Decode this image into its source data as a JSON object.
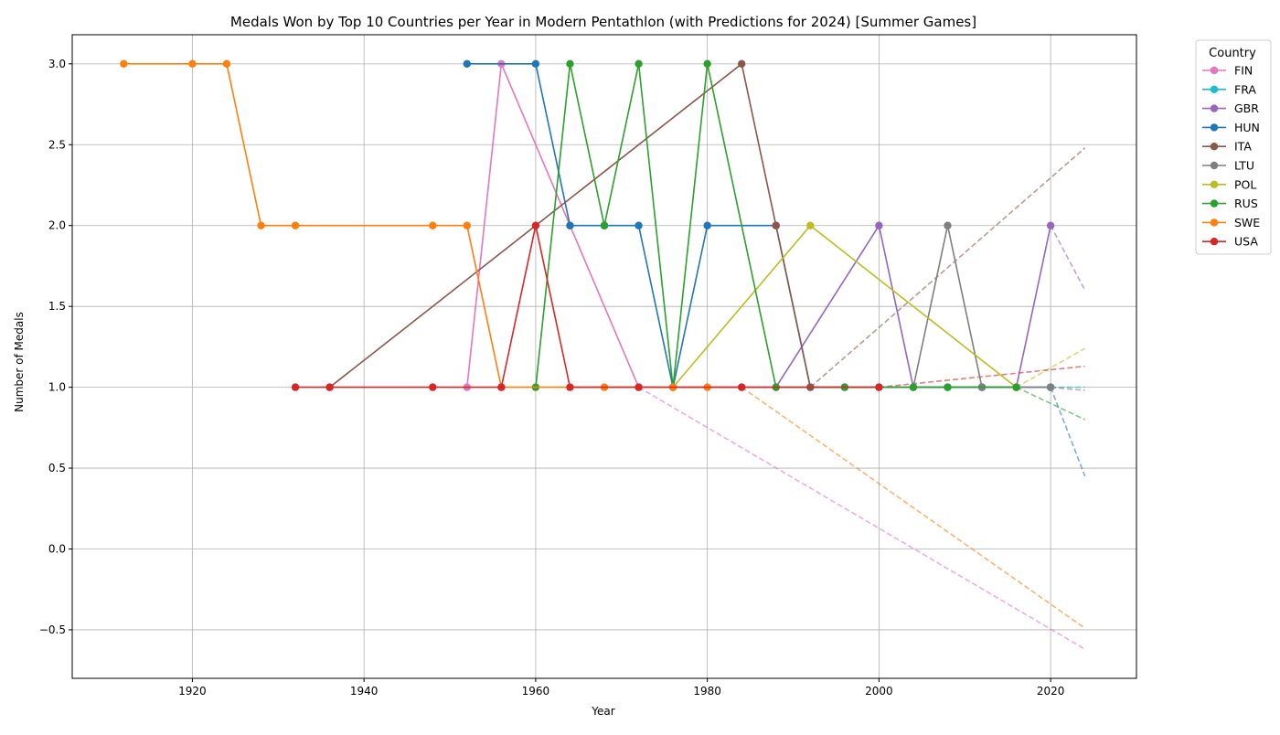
{
  "chart_data": {
    "type": "line",
    "title": "Medals Won by Top 10 Countries per Year in Modern Pentathlon (with Predictions for 2024) [Summer Games]",
    "xlabel": "Year",
    "ylabel": "Number of Medals",
    "xlim": [
      1906,
      2030
    ],
    "ylim": [
      -0.8,
      3.18
    ],
    "x_ticks": [
      1920,
      1940,
      1960,
      1980,
      2000,
      2020
    ],
    "y_ticks": [
      -0.5,
      0.0,
      0.5,
      1.0,
      1.5,
      2.0,
      2.5,
      3.0
    ],
    "grid": true,
    "legend": {
      "title": "Country",
      "placement": "outside-right"
    },
    "prediction_year": 2024,
    "series": [
      {
        "name": "FIN",
        "color": "#e377c2",
        "x": [
          1952,
          1956,
          1964,
          1972
        ],
        "y": [
          1,
          3,
          2,
          1
        ],
        "prediction": {
          "x": [
            1972,
            2024
          ],
          "y": [
            1,
            -0.62
          ]
        }
      },
      {
        "name": "FRA",
        "color": "#17becf",
        "x": [
          2020
        ],
        "y": [
          1
        ],
        "prediction": {
          "x": [
            2020,
            2024
          ],
          "y": [
            1,
            1
          ]
        }
      },
      {
        "name": "GBR",
        "color": "#9467bd",
        "x": [
          1976,
          1988,
          2000,
          2004,
          2012,
          2016,
          2020
        ],
        "y": [
          1,
          1,
          2,
          1,
          1,
          1,
          2
        ],
        "prediction": {
          "x": [
            2020,
            2024
          ],
          "y": [
            2,
            1.6
          ]
        }
      },
      {
        "name": "HUN",
        "color": "#1f77b4",
        "x": [
          1952,
          1960,
          1964,
          1968,
          1972,
          1976,
          1980,
          1988,
          1992,
          1996,
          2000,
          2008,
          2012,
          2016,
          2020
        ],
        "y": [
          3,
          3,
          2,
          2,
          2,
          1,
          2,
          2,
          1,
          1,
          1,
          1,
          1,
          1,
          1
        ],
        "prediction": {
          "x": [
            2020,
            2024
          ],
          "y": [
            1,
            0.45
          ]
        }
      },
      {
        "name": "ITA",
        "color": "#8c564b",
        "x": [
          1936,
          1984,
          1988,
          1992
        ],
        "y": [
          1,
          3,
          2,
          1
        ],
        "prediction": {
          "x": [
            1992,
            2024
          ],
          "y": [
            1,
            2.48
          ]
        }
      },
      {
        "name": "LTU",
        "color": "#7f7f7f",
        "x": [
          2004,
          2008,
          2012,
          2020
        ],
        "y": [
          1,
          2,
          1,
          1
        ],
        "prediction": {
          "x": [
            2020,
            2024
          ],
          "y": [
            1,
            0.98
          ]
        }
      },
      {
        "name": "POL",
        "color": "#bcbd22",
        "x": [
          1976,
          1992,
          2016
        ],
        "y": [
          1,
          2,
          1
        ],
        "prediction": {
          "x": [
            2016,
            2024
          ],
          "y": [
            1,
            1.24
          ]
        }
      },
      {
        "name": "RUS",
        "color": "#2ca02c",
        "x": [
          1960,
          1964,
          1968,
          1972,
          1976,
          1980,
          1988,
          1996,
          2004,
          2008,
          2016
        ],
        "y": [
          1,
          3,
          2,
          3,
          1,
          3,
          1,
          1,
          1,
          1,
          1
        ],
        "prediction": {
          "x": [
            2016,
            2024
          ],
          "y": [
            1,
            0.8
          ]
        }
      },
      {
        "name": "SWE",
        "color": "#ff7f0e",
        "x": [
          1912,
          1920,
          1924,
          1928,
          1932,
          1948,
          1952,
          1956,
          1968,
          1976,
          1980,
          1984
        ],
        "y": [
          3,
          3,
          3,
          2,
          2,
          2,
          2,
          1,
          1,
          1,
          1,
          1
        ],
        "prediction": {
          "x": [
            1984,
            2024
          ],
          "y": [
            1,
            -0.49
          ]
        }
      },
      {
        "name": "USA",
        "color": "#d62728",
        "x": [
          1932,
          1936,
          1948,
          1956,
          1960,
          1964,
          1972,
          1984,
          2000
        ],
        "y": [
          1,
          1,
          1,
          1,
          2,
          1,
          1,
          1,
          1
        ],
        "prediction": {
          "x": [
            2000,
            2024
          ],
          "y": [
            1,
            1.13
          ]
        }
      }
    ]
  }
}
